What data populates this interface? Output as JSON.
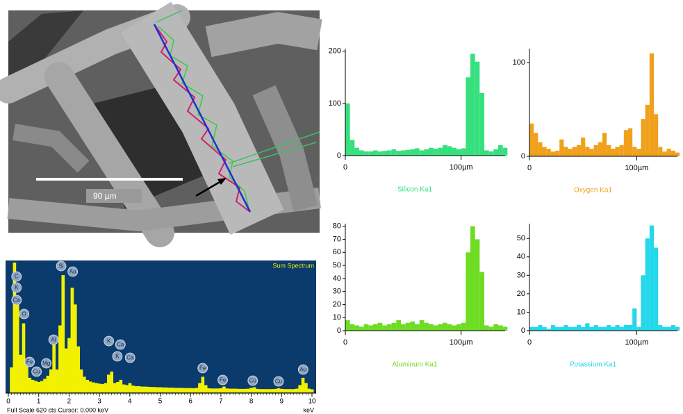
{
  "sem_image": {
    "scale_label": "90 µm"
  },
  "chart_data": [
    {
      "type": "area",
      "title": "Sum Spectrum",
      "xlabel": "keV",
      "footer": "Full Scale 620 cts  Cursor: 0.000 keV",
      "color": "#f2f200",
      "background": "#0b3a6c",
      "x": [
        0,
        0.1,
        0.2,
        0.3,
        0.4,
        0.5,
        0.6,
        0.7,
        0.8,
        0.9,
        1,
        1.1,
        1.2,
        1.3,
        1.4,
        1.5,
        1.6,
        1.7,
        1.8,
        1.9,
        2,
        2.1,
        2.2,
        2.3,
        2.4,
        2.5,
        2.6,
        2.7,
        2.8,
        2.9,
        3,
        3.1,
        3.2,
        3.3,
        3.4,
        3.5,
        3.6,
        3.7,
        3.8,
        3.9,
        4,
        4.1,
        4.2,
        4.3,
        4.4,
        4.5,
        4.6,
        4.7,
        4.8,
        4.9,
        5,
        5.1,
        5.2,
        5.3,
        5.4,
        5.5,
        5.6,
        5.7,
        5.8,
        5.9,
        6,
        6.1,
        6.2,
        6.3,
        6.4,
        6.5,
        6.6,
        6.7,
        6.8,
        6.9,
        7,
        7.1,
        7.2,
        7.3,
        7.4,
        7.5,
        7.6,
        7.7,
        7.8,
        7.9,
        8,
        8.1,
        8.2,
        8.3,
        8.4,
        8.5,
        8.6,
        8.7,
        8.8,
        8.9,
        9,
        9.1,
        9.2,
        9.3,
        9.4,
        9.5,
        9.6,
        9.7,
        9.8,
        9.9,
        10
      ],
      "values": [
        0,
        120,
        620,
        420,
        180,
        330,
        160,
        70,
        60,
        55,
        50,
        55,
        65,
        80,
        110,
        240,
        110,
        320,
        560,
        210,
        260,
        500,
        420,
        220,
        110,
        75,
        60,
        52,
        48,
        45,
        42,
        40,
        45,
        85,
        100,
        45,
        50,
        60,
        38,
        35,
        45,
        33,
        30,
        30,
        28,
        28,
        27,
        26,
        26,
        25,
        25,
        24,
        24,
        23,
        23,
        22,
        22,
        22,
        21,
        21,
        21,
        20,
        22,
        45,
        75,
        35,
        20,
        19,
        19,
        19,
        20,
        28,
        19,
        18,
        18,
        18,
        17,
        17,
        17,
        18,
        22,
        25,
        17,
        16,
        16,
        16,
        16,
        16,
        17,
        20,
        17,
        16,
        16,
        16,
        16,
        18,
        35,
        70,
        45,
        18,
        15
      ],
      "xlim": [
        0,
        10
      ],
      "ylim": [
        0,
        620
      ],
      "xticks": [
        0,
        1,
        2,
        3,
        4,
        5,
        6,
        7,
        8,
        9,
        10
      ],
      "annotations": [
        {
          "text": "C",
          "x": 0.27
        },
        {
          "text": "K",
          "x": 0.27
        },
        {
          "text": "Ca",
          "x": 0.27
        },
        {
          "text": "O",
          "x": 0.52
        },
        {
          "text": "Fe",
          "x": 0.7
        },
        {
          "text": "Cu",
          "x": 0.93
        },
        {
          "text": "Mg",
          "x": 1.25
        },
        {
          "text": "Al",
          "x": 1.49
        },
        {
          "text": "Si",
          "x": 1.74
        },
        {
          "text": "Au",
          "x": 2.12
        },
        {
          "text": "K",
          "x": 3.31
        },
        {
          "text": "Ca",
          "x": 3.69
        },
        {
          "text": "K",
          "x": 3.59
        },
        {
          "text": "Ca",
          "x": 4.01
        },
        {
          "text": "Fe",
          "x": 6.4
        },
        {
          "text": "Fe",
          "x": 7.06
        },
        {
          "text": "Cu",
          "x": 8.05
        },
        {
          "text": "Cu",
          "x": 8.9
        },
        {
          "text": "Au",
          "x": 9.71
        }
      ]
    },
    {
      "type": "bar",
      "title": "Silicon Ka1",
      "color": "#36e07e",
      "x": [
        0,
        4,
        8,
        12,
        16,
        20,
        24,
        28,
        32,
        36,
        40,
        44,
        48,
        52,
        56,
        60,
        64,
        68,
        72,
        76,
        80,
        84,
        88,
        92,
        96,
        100,
        104,
        108,
        112,
        116,
        120,
        124,
        128,
        132,
        136
      ],
      "values": [
        100,
        30,
        15,
        10,
        8,
        8,
        10,
        8,
        9,
        10,
        12,
        9,
        10,
        11,
        12,
        14,
        10,
        12,
        15,
        13,
        15,
        20,
        18,
        15,
        12,
        14,
        150,
        195,
        180,
        120,
        10,
        8,
        12,
        20,
        15
      ],
      "xlim": [
        0,
        138
      ],
      "ylim": [
        0,
        205
      ],
      "xticks": [
        0,
        {
          "value": 100,
          "label": "100µm"
        }
      ],
      "yticks": [
        0,
        100,
        200
      ]
    },
    {
      "type": "bar",
      "title": "Oxygen Ka1",
      "color": "#f0a11c",
      "x": [
        0,
        4,
        8,
        12,
        16,
        20,
        24,
        28,
        32,
        36,
        40,
        44,
        48,
        52,
        56,
        60,
        64,
        68,
        72,
        76,
        80,
        84,
        88,
        92,
        96,
        100,
        104,
        108,
        112,
        116,
        120,
        124,
        128,
        132,
        136
      ],
      "values": [
        35,
        25,
        15,
        10,
        8,
        5,
        6,
        18,
        10,
        8,
        10,
        12,
        20,
        10,
        8,
        12,
        15,
        25,
        12,
        8,
        10,
        12,
        28,
        30,
        10,
        8,
        40,
        55,
        110,
        45,
        10,
        5,
        8,
        6,
        4
      ],
      "xlim": [
        0,
        138
      ],
      "ylim": [
        0,
        115
      ],
      "xticks": [
        0,
        {
          "value": 100,
          "label": "100µm"
        }
      ],
      "yticks": [
        0,
        100
      ]
    },
    {
      "type": "bar",
      "title": "Aluminum Ka1",
      "color": "#6ddc22",
      "x": [
        0,
        4,
        8,
        12,
        16,
        20,
        24,
        28,
        32,
        36,
        40,
        44,
        48,
        52,
        56,
        60,
        64,
        68,
        72,
        76,
        80,
        84,
        88,
        92,
        96,
        100,
        104,
        108,
        112,
        116,
        120,
        124,
        128,
        132,
        136
      ],
      "values": [
        8,
        5,
        4,
        3,
        5,
        4,
        5,
        6,
        4,
        5,
        6,
        8,
        5,
        6,
        7,
        5,
        8,
        6,
        5,
        4,
        5,
        6,
        5,
        4,
        5,
        6,
        60,
        80,
        70,
        45,
        4,
        3,
        5,
        4,
        3
      ],
      "xlim": [
        0,
        138
      ],
      "ylim": [
        0,
        82
      ],
      "xticks": [
        0,
        {
          "value": 100,
          "label": "100µm"
        }
      ],
      "yticks": [
        0,
        10,
        20,
        30,
        40,
        50,
        60,
        70,
        80
      ]
    },
    {
      "type": "bar",
      "title": "Potassium Ka1",
      "color": "#22d8ea",
      "x": [
        0,
        4,
        8,
        12,
        16,
        20,
        24,
        28,
        32,
        36,
        40,
        44,
        48,
        52,
        56,
        60,
        64,
        68,
        72,
        76,
        80,
        84,
        88,
        92,
        96,
        100,
        104,
        108,
        112,
        116,
        120,
        124,
        128,
        132,
        136
      ],
      "values": [
        2,
        2,
        3,
        2,
        1,
        3,
        2,
        2,
        3,
        2,
        2,
        3,
        2,
        4,
        2,
        3,
        2,
        2,
        3,
        2,
        3,
        2,
        3,
        3,
        12,
        2,
        30,
        50,
        57,
        45,
        3,
        2,
        2,
        3,
        2
      ],
      "xlim": [
        0,
        138
      ],
      "ylim": [
        0,
        58
      ],
      "xticks": [
        0,
        {
          "value": 100,
          "label": "100µm"
        }
      ],
      "yticks": [
        0,
        10,
        20,
        30,
        40,
        50
      ]
    }
  ]
}
